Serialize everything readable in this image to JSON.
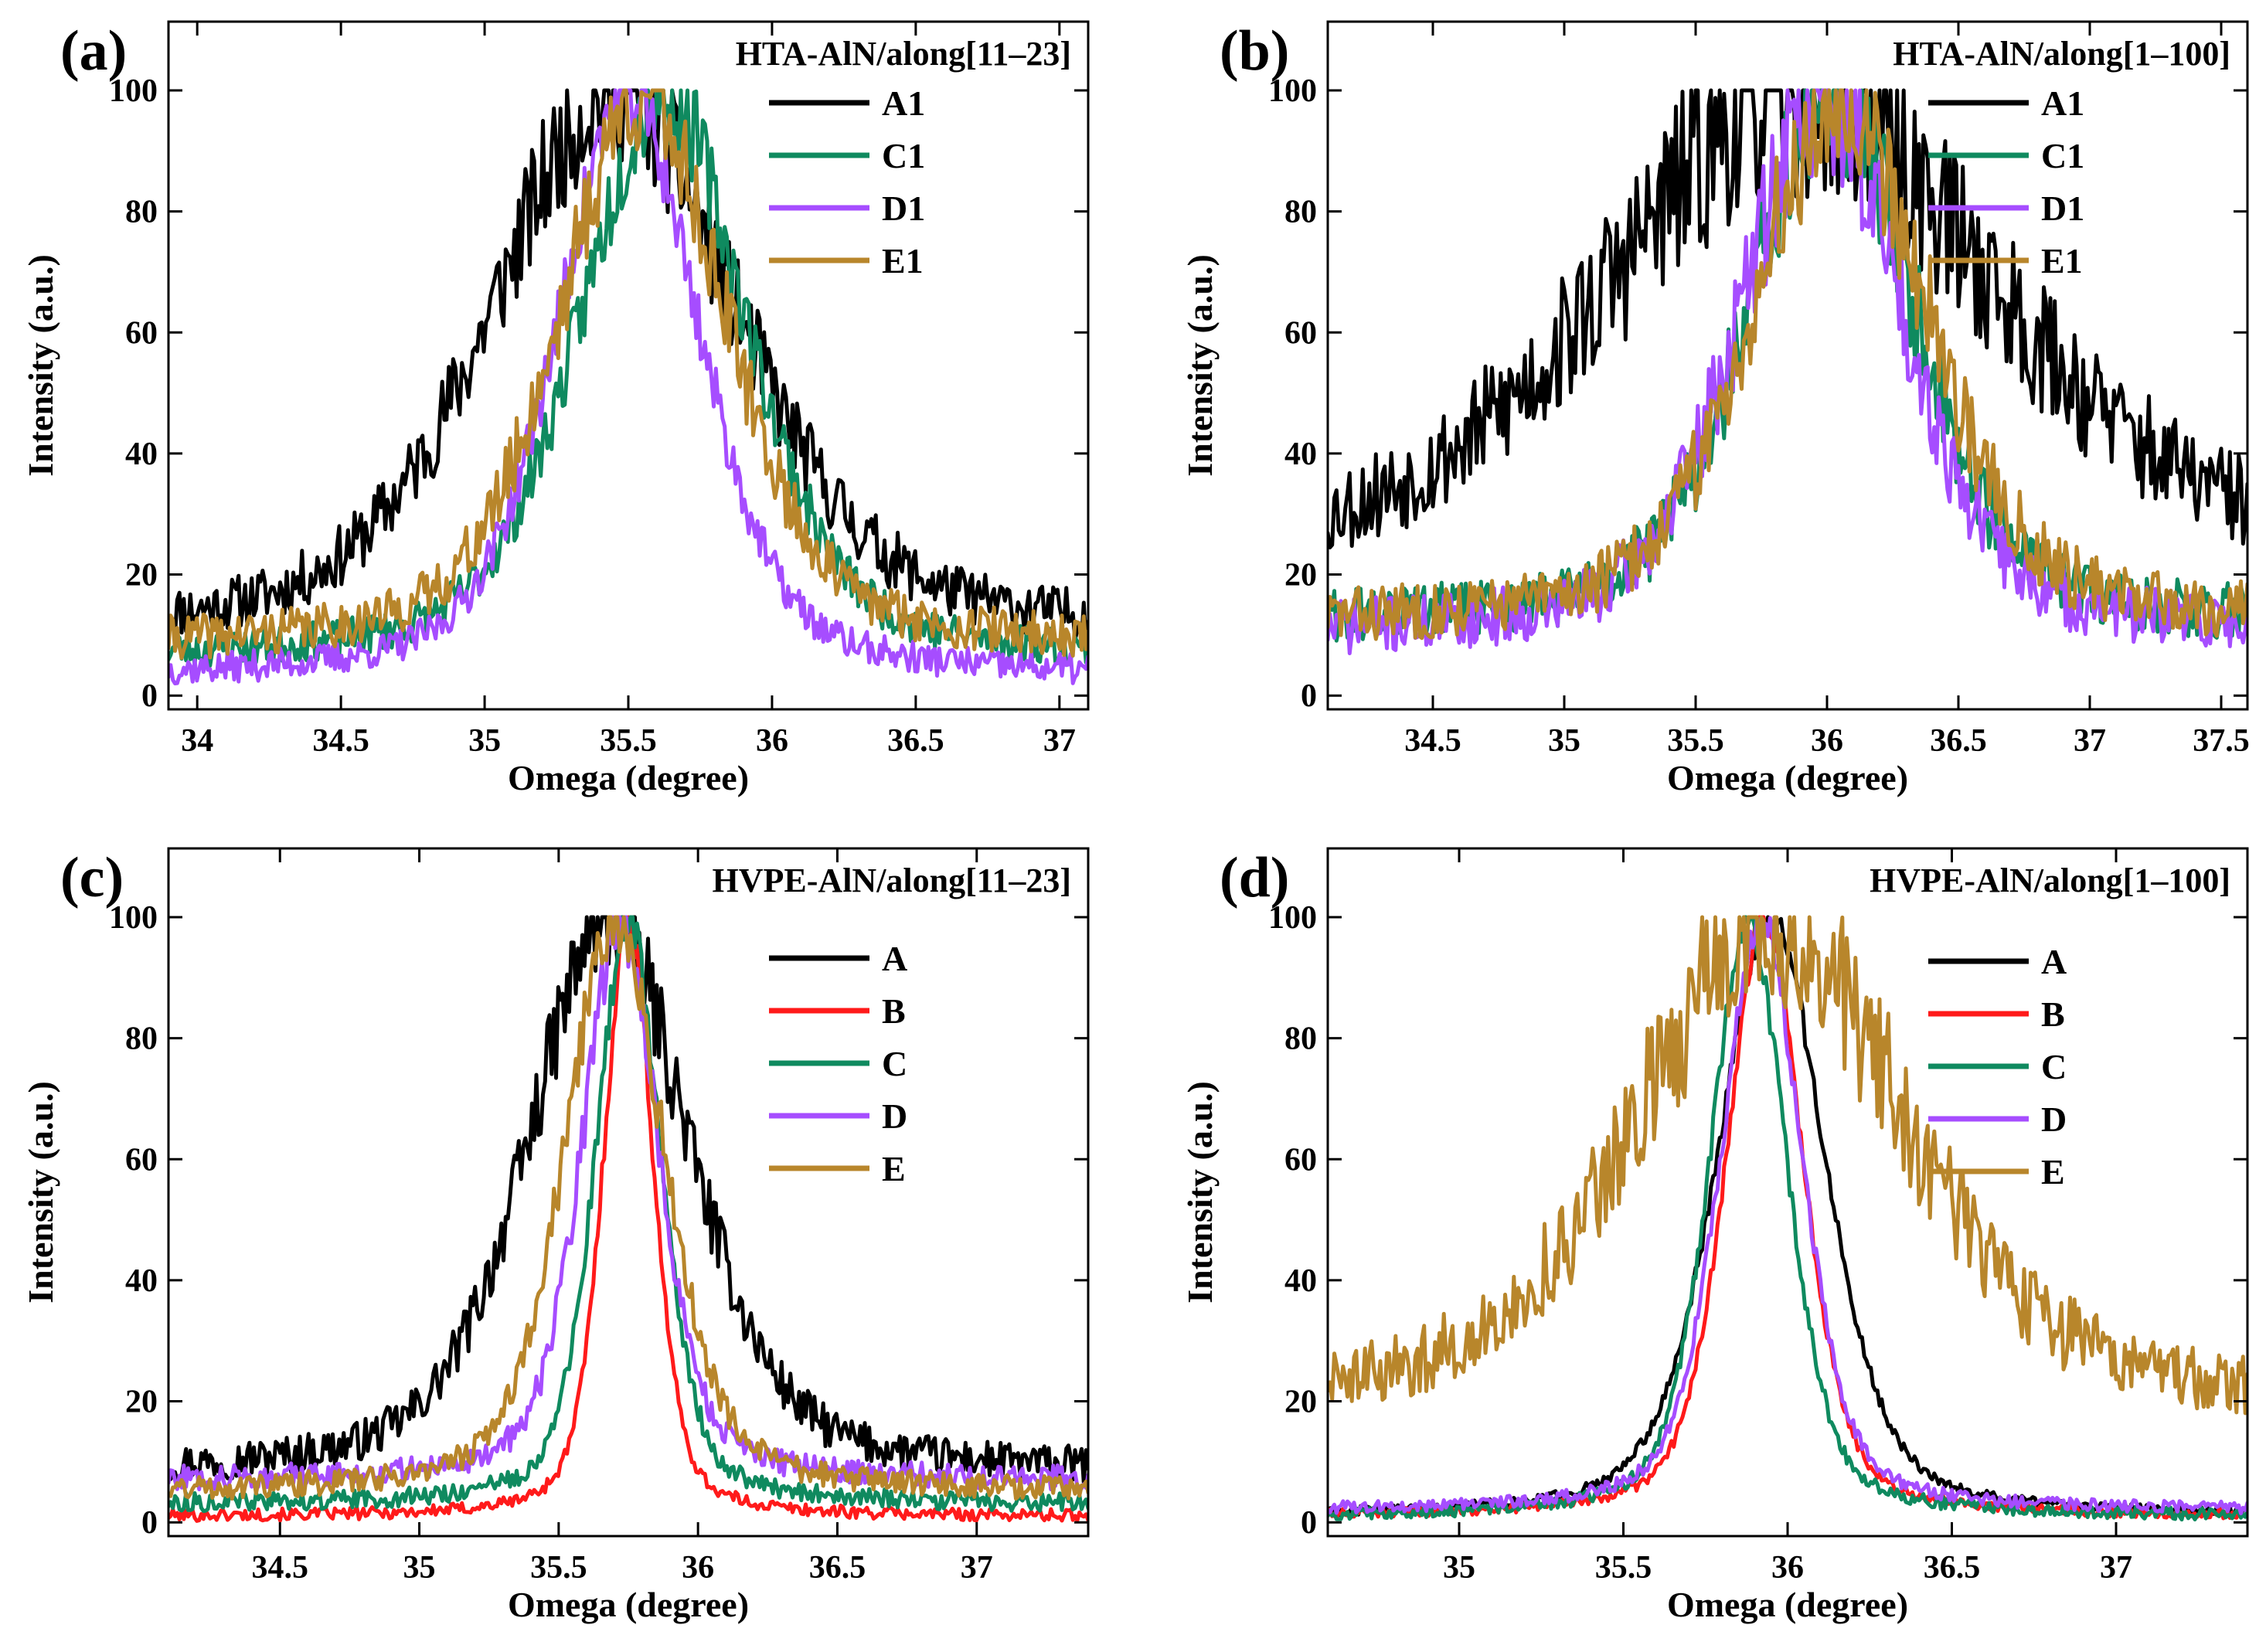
{
  "chart_data": [
    {
      "id": "a",
      "type": "line",
      "panel_label": "(a)",
      "title": "HTA-AlN/along[11–23]",
      "xlabel": "Omega (degree)",
      "ylabel": "Intensity (a.u.)",
      "xlim": [
        33.9,
        37.1
      ],
      "ylim": [
        0,
        100
      ],
      "xticks": [
        34.0,
        34.5,
        35.0,
        35.5,
        36.0,
        36.5,
        37.0
      ],
      "yticks": [
        0,
        20,
        40,
        60,
        80,
        100
      ],
      "grid": false,
      "legend_position": "top-right",
      "series": [
        {
          "name": "A1",
          "color": "#000000",
          "center": 35.45,
          "width": 0.62,
          "base": 10,
          "noise": 8,
          "seed": 11
        },
        {
          "name": "C1",
          "color": "#0f8a5f",
          "center": 35.62,
          "width": 0.42,
          "base": 6,
          "noise": 6,
          "seed": 23
        },
        {
          "name": "D1",
          "color": "#a64dff",
          "center": 35.5,
          "width": 0.36,
          "base": 3,
          "noise": 5,
          "seed": 37
        },
        {
          "name": "E1",
          "color": "#b8862b",
          "center": 35.55,
          "width": 0.42,
          "base": 8,
          "noise": 7,
          "seed": 41
        }
      ]
    },
    {
      "id": "b",
      "type": "line",
      "panel_label": "(b)",
      "title": "HTA-AlN/along[1–100]",
      "xlabel": "Omega (degree)",
      "ylabel": "Intensity (a.u.)",
      "xlim": [
        34.1,
        37.6
      ],
      "ylim": [
        0,
        100
      ],
      "xticks": [
        34.5,
        35.0,
        35.5,
        36.0,
        36.5,
        37.0,
        37.5
      ],
      "yticks": [
        0,
        20,
        40,
        60,
        80,
        100
      ],
      "grid": false,
      "legend_position": "top-right",
      "series": [
        {
          "name": "A1",
          "color": "#000000",
          "center": 35.9,
          "width": 1.05,
          "base": 22,
          "noise": 12,
          "seed": 53
        },
        {
          "name": "C1",
          "color": "#0f8a5f",
          "center": 36.02,
          "width": 0.45,
          "base": 12,
          "noise": 9,
          "seed": 61
        },
        {
          "name": "D1",
          "color": "#a64dff",
          "center": 35.98,
          "width": 0.45,
          "base": 10,
          "noise": 9,
          "seed": 71
        },
        {
          "name": "E1",
          "color": "#b8862b",
          "center": 36.05,
          "width": 0.48,
          "base": 12,
          "noise": 9,
          "seed": 83
        }
      ]
    },
    {
      "id": "c",
      "type": "line",
      "panel_label": "(c)",
      "title": "HVPE-AlN/along[11–23]",
      "xlabel": "Omega (degree)",
      "ylabel": "Intensity (a.u.)",
      "xlim": [
        34.1,
        37.4
      ],
      "ylim": [
        0,
        100
      ],
      "xticks": [
        34.5,
        35.0,
        35.5,
        36.0,
        36.5,
        37.0
      ],
      "yticks": [
        0,
        20,
        40,
        60,
        80,
        100
      ],
      "grid": false,
      "legend_position": "top-right",
      "series": [
        {
          "name": "A",
          "color": "#000000",
          "center": 35.68,
          "width": 0.42,
          "base": 8,
          "noise": 6,
          "seed": 97
        },
        {
          "name": "B",
          "color": "#ff1a1a",
          "center": 35.75,
          "width": 0.13,
          "base": 1,
          "noise": 2,
          "seed": 101
        },
        {
          "name": "C",
          "color": "#0f8a5f",
          "center": 35.75,
          "width": 0.17,
          "base": 3,
          "noise": 3,
          "seed": 113
        },
        {
          "name": "D",
          "color": "#a64dff",
          "center": 35.72,
          "width": 0.2,
          "base": 7,
          "noise": 4,
          "seed": 127
        },
        {
          "name": "E",
          "color": "#b8862b",
          "center": 35.7,
          "width": 0.26,
          "base": 5,
          "noise": 4,
          "seed": 131
        }
      ]
    },
    {
      "id": "d",
      "type": "line",
      "panel_label": "(d)",
      "title": "HVPE-AlN/along[1–100]",
      "xlabel": "Omega (degree)",
      "ylabel": "Intensity (a.u.)",
      "xlim": [
        34.6,
        37.4
      ],
      "ylim": [
        0,
        100
      ],
      "xticks": [
        35.0,
        35.5,
        36.0,
        36.5,
        37.0
      ],
      "yticks": [
        0,
        20,
        40,
        60,
        80,
        100
      ],
      "grid": false,
      "legend_position": "top-right",
      "series": [
        {
          "name": "A",
          "color": "#000000",
          "center": 35.95,
          "width": 0.24,
          "base": 1,
          "noise": 1.5,
          "seed": 149
        },
        {
          "name": "B",
          "color": "#ff1a1a",
          "center": 35.93,
          "width": 0.17,
          "base": 1,
          "noise": 1.5,
          "seed": 151
        },
        {
          "name": "C",
          "color": "#0f8a5f",
          "center": 35.88,
          "width": 0.17,
          "base": 1,
          "noise": 2,
          "seed": 157
        },
        {
          "name": "D",
          "color": "#a64dff",
          "center": 35.92,
          "width": 0.18,
          "base": 2,
          "noise": 2,
          "seed": 163
        },
        {
          "name": "E",
          "color": "#b8862b",
          "center": 35.95,
          "width": 0.58,
          "base": 20,
          "noise": 10,
          "seed": 167
        }
      ]
    }
  ]
}
